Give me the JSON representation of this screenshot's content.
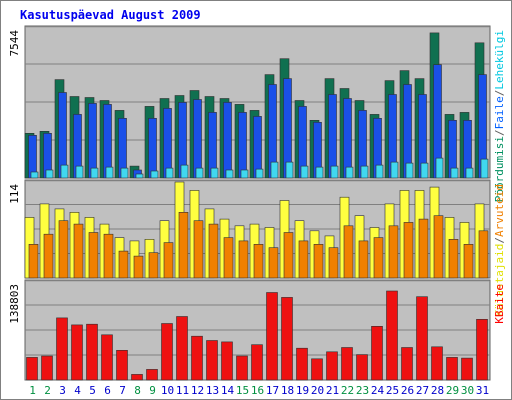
{
  "chart_data": {
    "type": "bar",
    "title": "Kasutuspäevad August 2009",
    "categories": [
      "1",
      "2",
      "3",
      "4",
      "5",
      "6",
      "7",
      "8",
      "9",
      "10",
      "11",
      "12",
      "13",
      "14",
      "15",
      "16",
      "17",
      "18",
      "19",
      "20",
      "21",
      "22",
      "23",
      "24",
      "25",
      "26",
      "27",
      "28",
      "29",
      "30",
      "31"
    ],
    "weekend_categories": [
      "1",
      "2",
      "8",
      "9",
      "15",
      "16",
      "22",
      "23",
      "29",
      "30"
    ],
    "panels": [
      {
        "id": "top",
        "ymax_label": "7544",
        "ylim": [
          0,
          7544
        ],
        "right_labels": [
          {
            "text": "Pöördumisi",
            "color": "#009060"
          },
          {
            "text": "/",
            "color": "#606060"
          },
          {
            "text": "Faile",
            "color": "#0060ff"
          },
          {
            "text": "/",
            "color": "#606060"
          },
          {
            "text": "Lehekülgi",
            "color": "#00c8e0"
          }
        ],
        "series": [
          {
            "name": "Pöördumisi",
            "color": "#107050",
            "values": [
              2250,
              2350,
              4950,
              4100,
              4050,
              3900,
              3400,
              600,
              3600,
              4000,
              4150,
              4400,
              4100,
              4000,
              3700,
              3400,
              5200,
              6000,
              3900,
              2900,
              5000,
              4500,
              3900,
              3200,
              4900,
              5400,
              5000,
              7300,
              3200,
              3300,
              6800
            ]
          },
          {
            "name": "Faile",
            "color": "#1a50e8",
            "values": [
              2150,
              2250,
              4300,
              3200,
              3750,
              3700,
              3000,
              400,
              3000,
              3500,
              3800,
              3950,
              3300,
              3800,
              3300,
              3100,
              4700,
              5000,
              3600,
              2800,
              4200,
              4000,
              3400,
              3000,
              4200,
              4700,
              4200,
              5700,
              2900,
              2900,
              5200
            ]
          },
          {
            "name": "Lehekülgi",
            "color": "#40d8f0",
            "values": [
              300,
              400,
              650,
              600,
              500,
              550,
              500,
              200,
              350,
              500,
              650,
              500,
              500,
              400,
              400,
              450,
              800,
              800,
              600,
              550,
              600,
              550,
              600,
              650,
              800,
              750,
              750,
              1000,
              500,
              500,
              950
            ]
          }
        ]
      },
      {
        "id": "middle",
        "ymax_label": "114",
        "ylim": [
          0,
          114
        ],
        "right_labels": [
          {
            "text": "Külastajaid",
            "color": "#e0e000"
          },
          {
            "text": "/",
            "color": "#606060"
          },
          {
            "text": "Arvuteid",
            "color": "#f08000"
          }
        ],
        "series": [
          {
            "name": "Külastajaid",
            "color": "#ffff40",
            "values": [
              72,
              88,
              82,
              78,
              72,
              64,
              48,
              44,
              46,
              68,
              114,
              104,
              82,
              70,
              62,
              64,
              60,
              92,
              68,
              56,
              50,
              96,
              74,
              60,
              88,
              104,
              104,
              108,
              72,
              66,
              88
            ]
          },
          {
            "name": "Arvuteid",
            "color": "#f08000",
            "values": [
              40,
              52,
              68,
              64,
              54,
              52,
              32,
              26,
              30,
              42,
              78,
              68,
              64,
              48,
              44,
              40,
              36,
              54,
              44,
              40,
              36,
              62,
              44,
              48,
              62,
              66,
              70,
              74,
              46,
              40,
              56
            ]
          }
        ]
      },
      {
        "id": "bottom",
        "ymax_label": "138803",
        "ylim": [
          0,
          138803
        ],
        "right_labels": [
          {
            "text": "KBaite",
            "color": "#ff0000"
          }
        ],
        "series": [
          {
            "name": "KBaite",
            "color": "#ee1111",
            "values": [
              32000,
              34000,
              88000,
              78000,
              79000,
              64000,
              42000,
              8000,
              15000,
              80000,
              90000,
              62000,
              56000,
              54000,
              34000,
              50000,
              124000,
              117000,
              45000,
              30000,
              40000,
              46000,
              36000,
              76000,
              126000,
              46000,
              118000,
              47000,
              32000,
              31000,
              86000
            ]
          }
        ]
      }
    ],
    "colors": {
      "background": "#ffffff",
      "title": "#0000ee",
      "plot_bg": "#c0c0c0",
      "grid": "#808080",
      "weekday_label": "#0000cc",
      "weekend_label": "#009040"
    }
  }
}
